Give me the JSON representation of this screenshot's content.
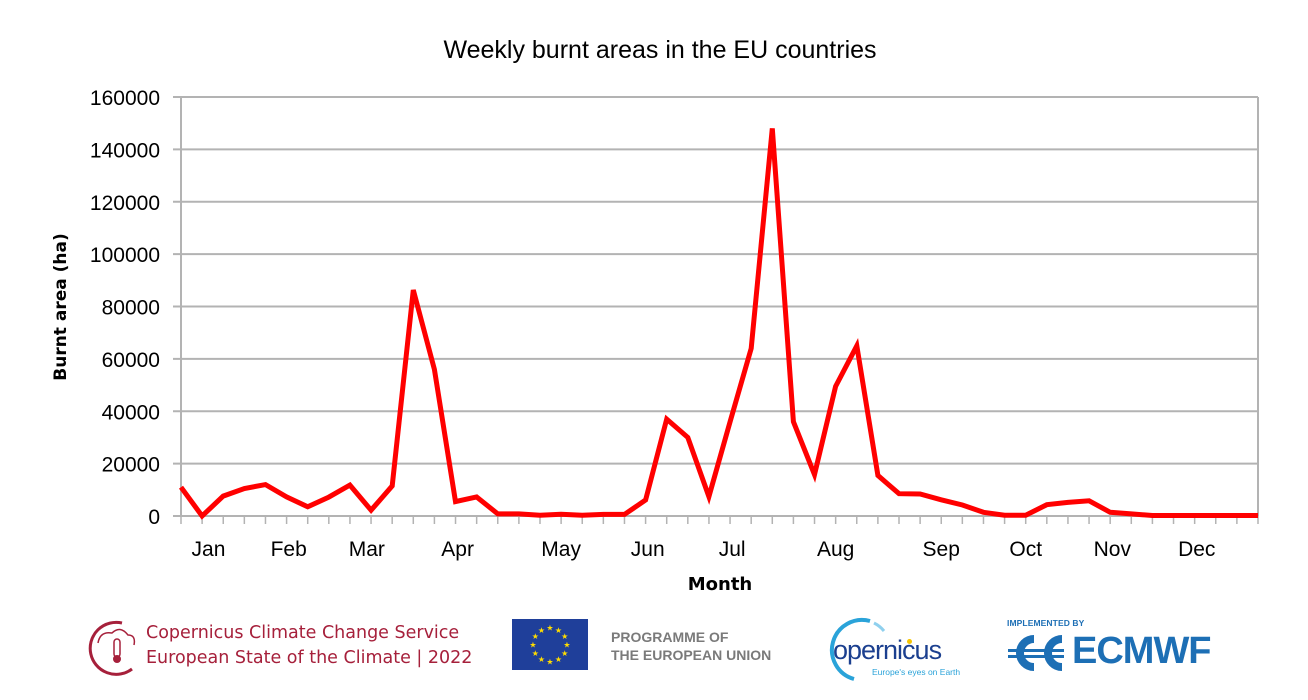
{
  "chart_data": {
    "type": "line",
    "title": "Weekly burnt areas in the EU countries",
    "xlabel": "Month",
    "ylabel": "Burnt area (ha)",
    "ylim": [
      0,
      160000
    ],
    "yticks": [
      0,
      20000,
      40000,
      60000,
      80000,
      100000,
      120000,
      140000,
      160000
    ],
    "ytick_labels": [
      "0",
      "20000",
      "40000",
      "60000",
      "80000",
      "100000",
      "120000",
      "140000",
      "160000"
    ],
    "x_tick_labels": [
      "Jan",
      "Feb",
      "Mar",
      "Apr",
      "May",
      "Jun",
      "Jul",
      "Aug",
      "Sep",
      "Oct",
      "Nov",
      "Dec"
    ],
    "x_label_weeks": [
      2.3,
      6.1,
      9.8,
      14.1,
      19.0,
      23.1,
      27.1,
      32.0,
      37.0,
      41.0,
      45.1,
      49.1
    ],
    "grid": true,
    "legend": null,
    "line_color": "#ff0000",
    "x": [
      1,
      2,
      3,
      4,
      5,
      6,
      7,
      8,
      9,
      10,
      11,
      12,
      13,
      14,
      15,
      16,
      17,
      18,
      19,
      20,
      21,
      22,
      23,
      24,
      25,
      26,
      27,
      28,
      29,
      30,
      31,
      32,
      33,
      34,
      35,
      36,
      37,
      38,
      39,
      40,
      41,
      42,
      43,
      44,
      45,
      46,
      47,
      48,
      49,
      50,
      51,
      52
    ],
    "series": [
      {
        "name": "Weekly burnt area (ha)",
        "values": [
          11000,
          0,
          7600,
          10500,
          12000,
          7300,
          3500,
          7200,
          11800,
          2200,
          11500,
          86300,
          56000,
          5500,
          7300,
          800,
          800,
          300,
          700,
          300,
          600,
          600,
          6100,
          37000,
          30000,
          7400,
          36000,
          64000,
          148000,
          36000,
          15800,
          49500,
          65000,
          15500,
          8500,
          8400,
          6200,
          4200,
          1400,
          300,
          300,
          4300,
          5200,
          5800,
          1400,
          800,
          200,
          200,
          200,
          200,
          200,
          200
        ]
      }
    ]
  },
  "footer": {
    "c3s_line1": "Copernicus Climate Change Service",
    "c3s_line2": "European State of the Climate | 2022",
    "eu_line1": "PROGRAMME OF",
    "eu_line2": "THE EUROPEAN UNION",
    "copernicus_word": "opernicus",
    "copernicus_tagline": "Europe's eyes on Earth",
    "ecmwf_implemented": "IMPLEMENTED BY",
    "ecmwf_word": "ECMWF"
  },
  "colors": {
    "line": "#ff0000",
    "grid": "#b3b3b3",
    "c3s": "#a6203b",
    "eu_blue": "#1f3f9a",
    "eu_star": "#ffdd00",
    "ecmwf_blue": "#1d6fb5",
    "copernicus_navy": "#1b3f8f"
  }
}
